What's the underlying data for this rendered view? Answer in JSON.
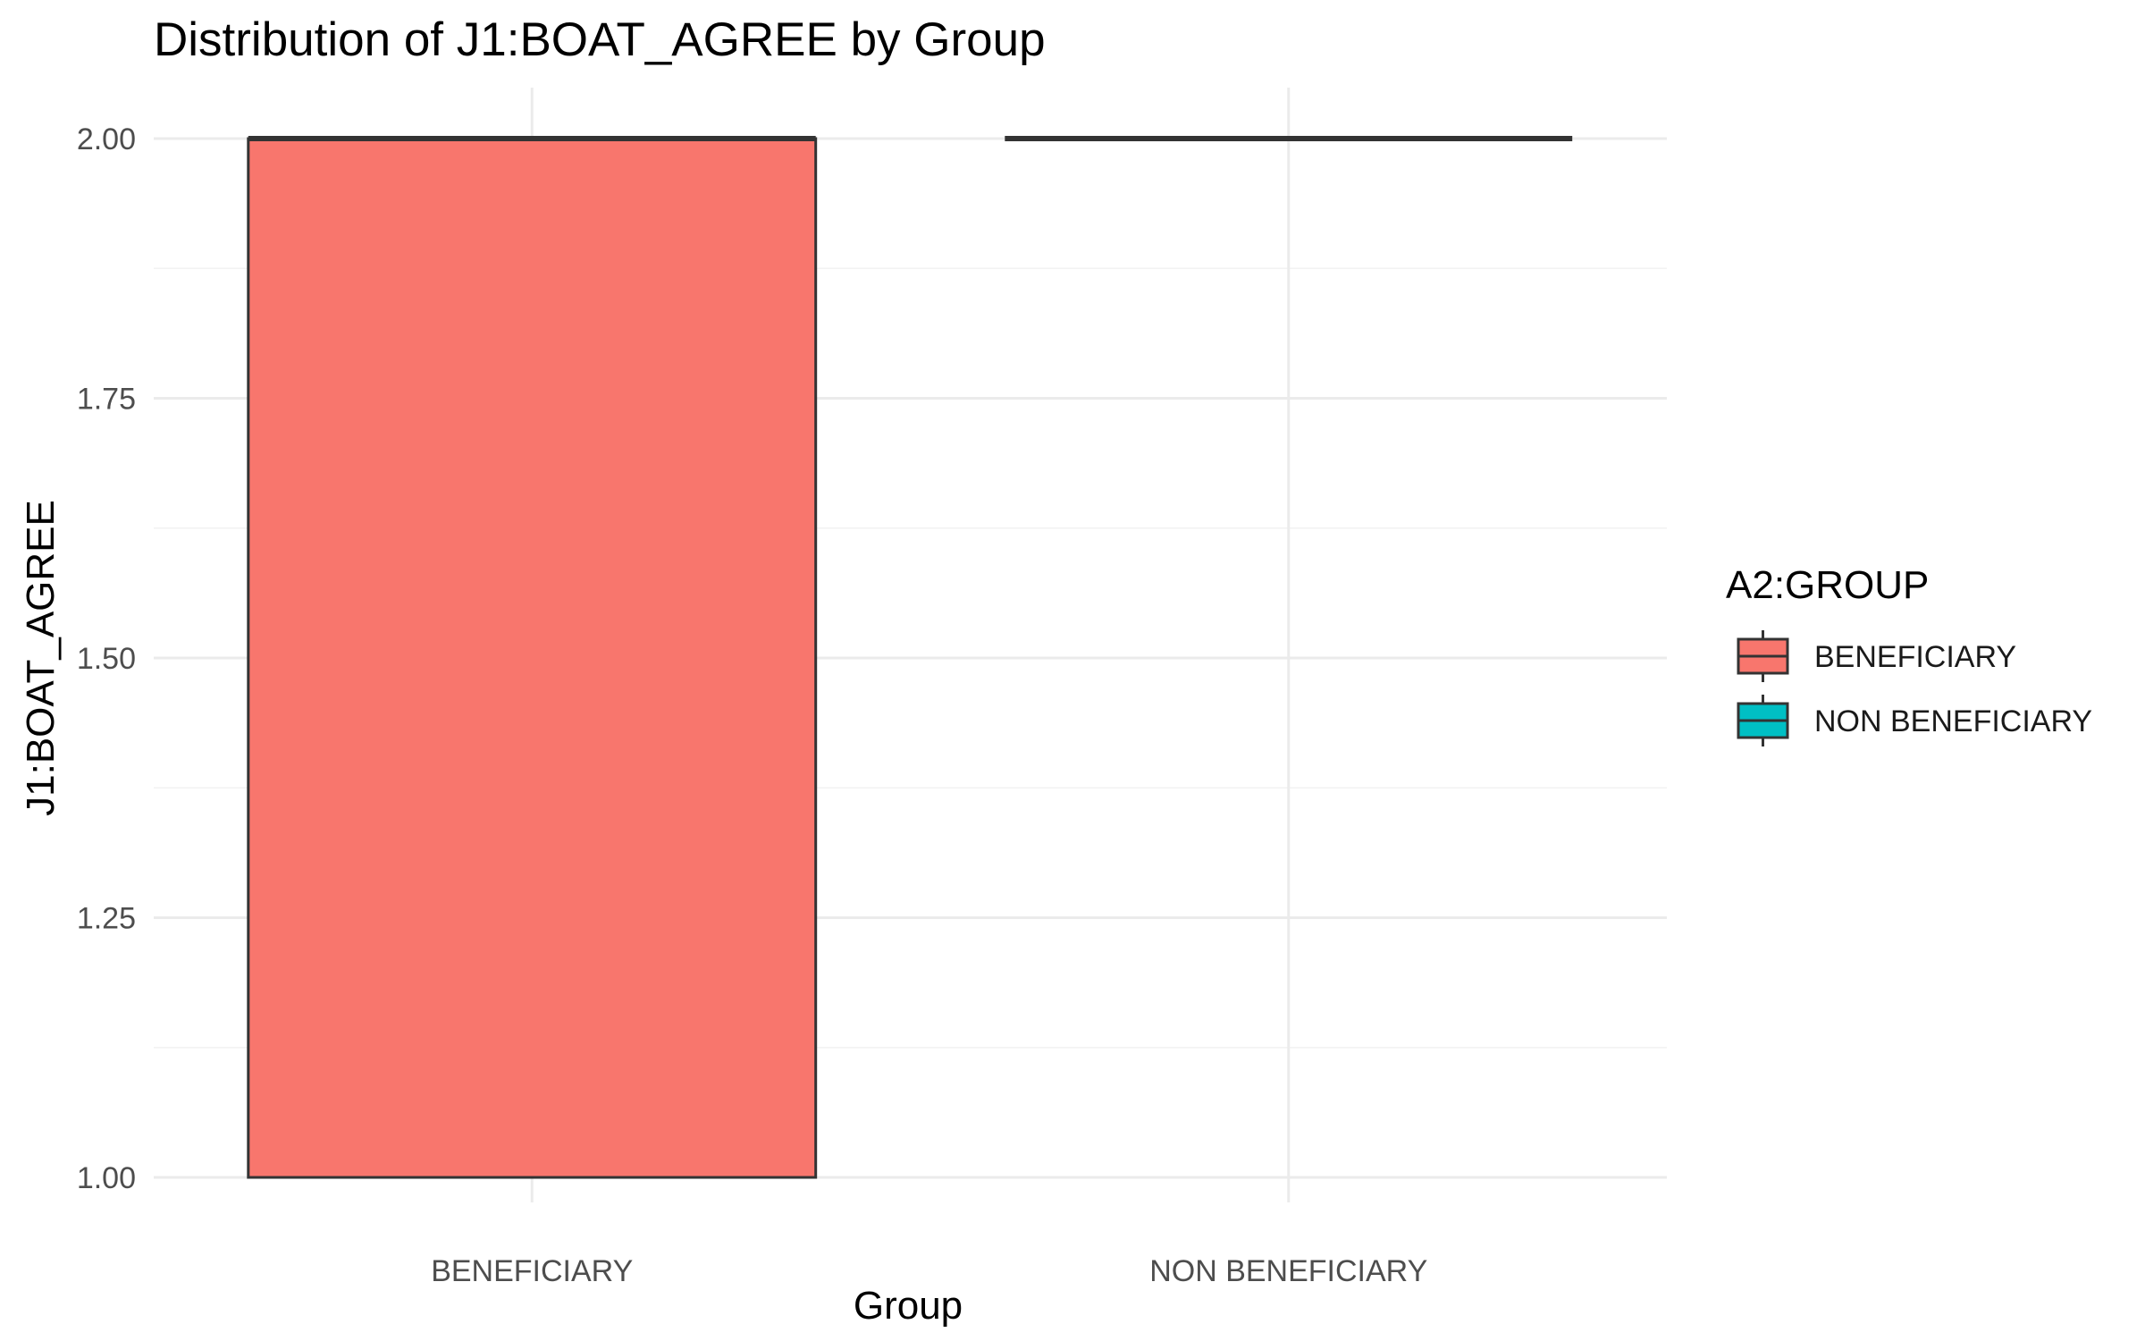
{
  "chart_data": {
    "type": "boxplot",
    "title": "Distribution of J1:BOAT_AGREE by Group",
    "xlabel": "Group",
    "ylabel": "J1:BOAT_AGREE",
    "categories": [
      "BENEFICIARY",
      "NON BENEFICIARY"
    ],
    "ylim": [
      1.0,
      2.0
    ],
    "y_ticks": [
      1.0,
      1.25,
      1.5,
      1.75,
      2.0
    ],
    "y_tick_labels": [
      "1.00",
      "1.25",
      "1.50",
      "1.75",
      "2.00"
    ],
    "grid": true,
    "boxes": [
      {
        "category": "BENEFICIARY",
        "min": 1.0,
        "q1": 1.0,
        "median": 2.0,
        "q3": 2.0,
        "max": 2.0,
        "color": "#F8766D"
      },
      {
        "category": "NON BENEFICIARY",
        "min": 2.0,
        "q1": 2.0,
        "median": 2.0,
        "q3": 2.0,
        "max": 2.0,
        "color": "#00BFC4"
      }
    ],
    "legend": {
      "title": "A2:GROUP",
      "position": "right",
      "entries": [
        {
          "label": "BENEFICIARY",
          "color": "#F8766D"
        },
        {
          "label": "NON BENEFICIARY",
          "color": "#00BFC4"
        }
      ]
    }
  }
}
